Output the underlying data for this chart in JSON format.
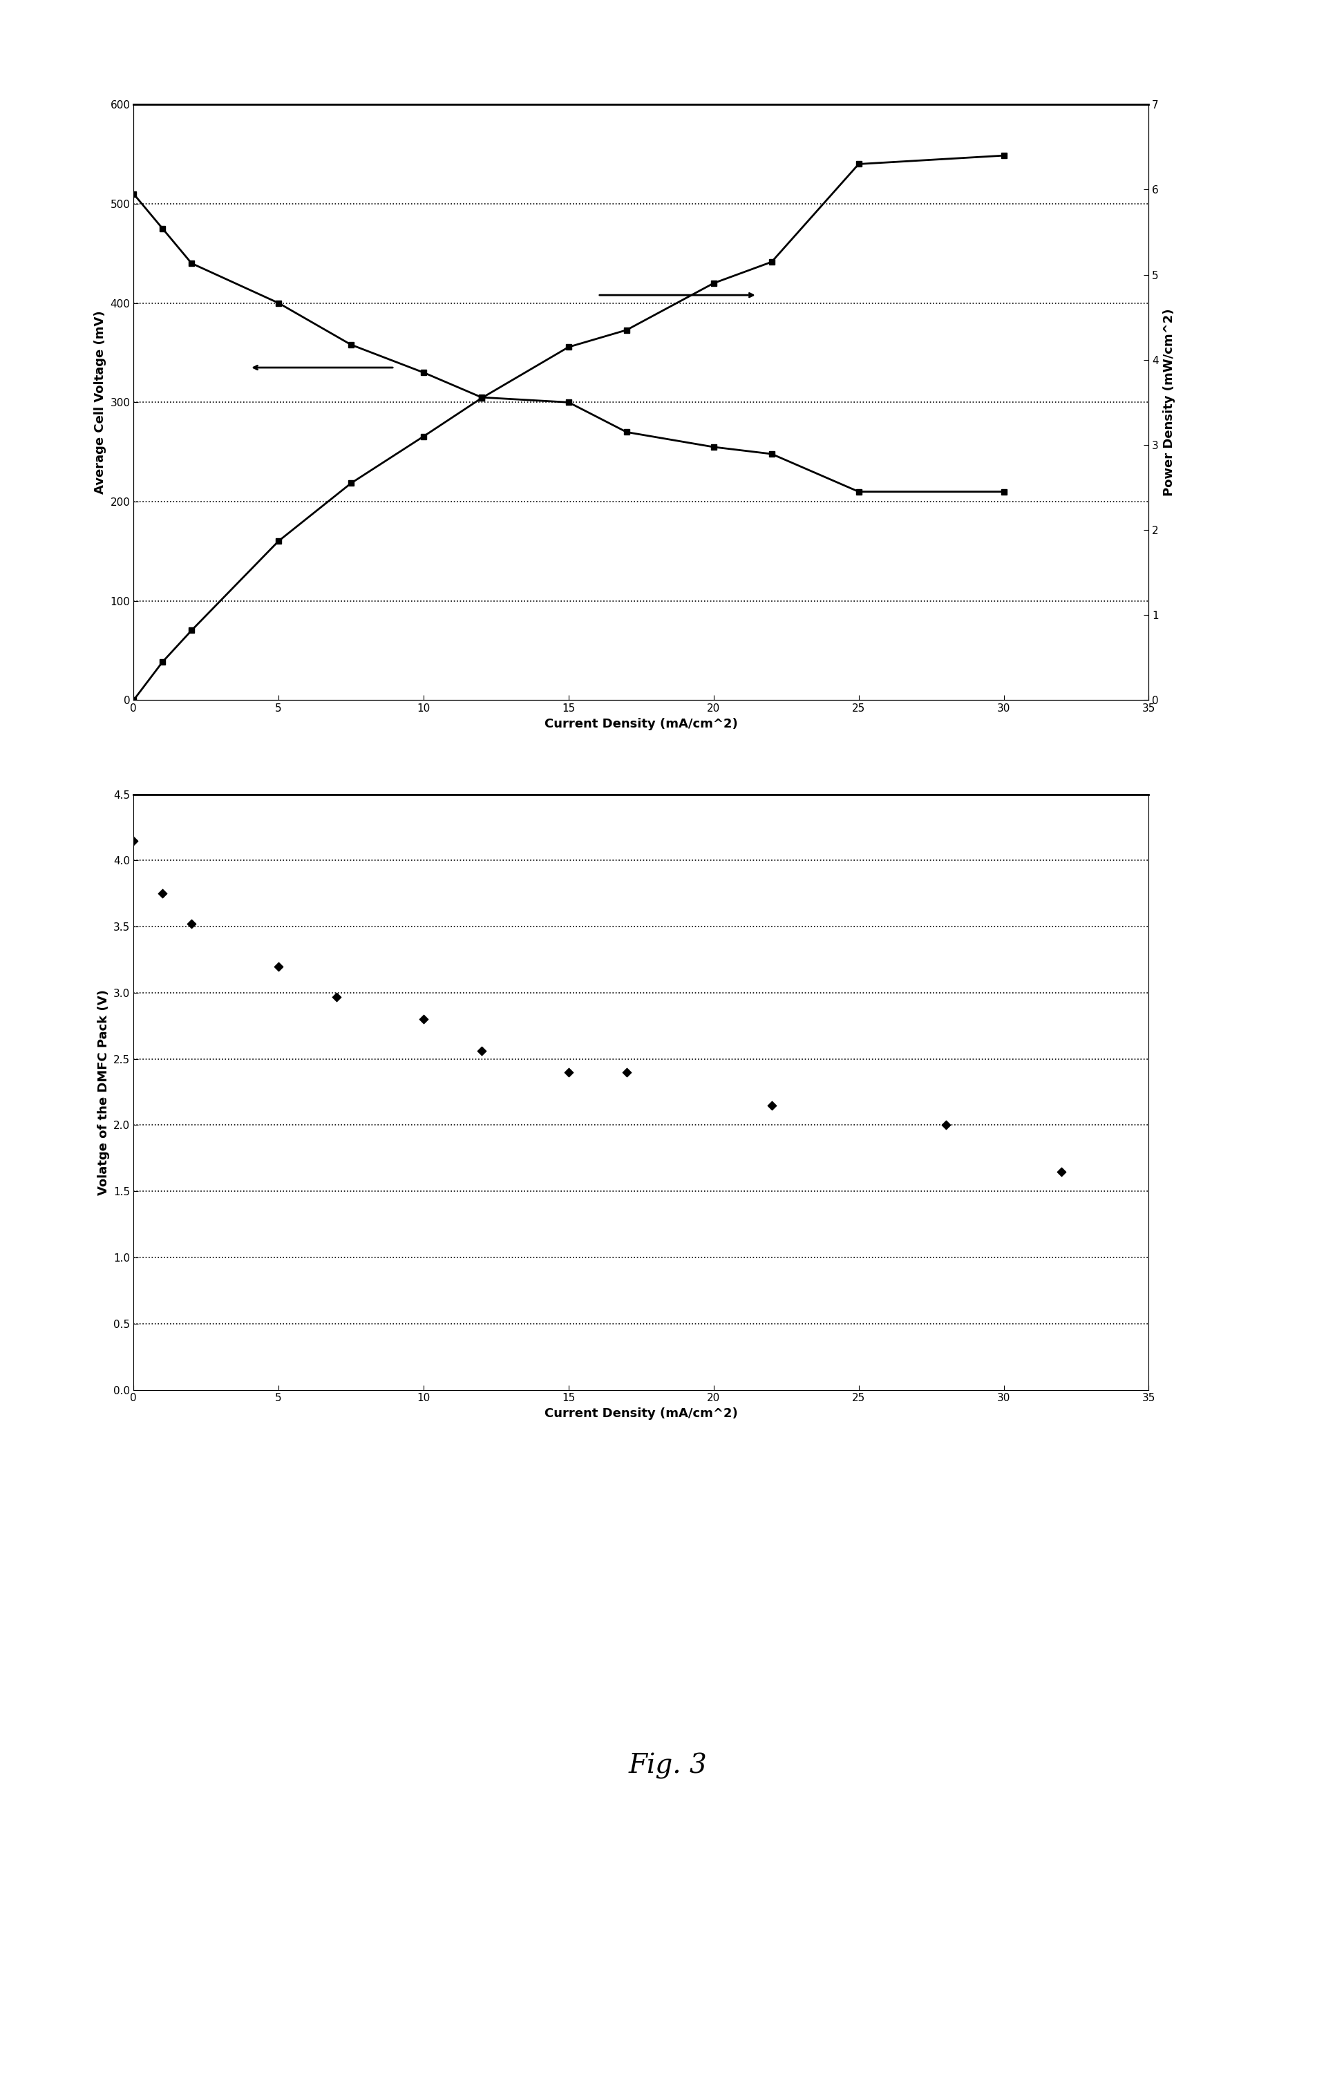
{
  "chart1": {
    "voltage_x": [
      0,
      1,
      2,
      5,
      7.5,
      10,
      12,
      15,
      17,
      20,
      22,
      25,
      30
    ],
    "voltage_y": [
      510,
      475,
      440,
      400,
      358,
      330,
      305,
      300,
      270,
      255,
      248,
      210,
      210
    ],
    "power_x": [
      0,
      1,
      2,
      5,
      7.5,
      10,
      12,
      15,
      17,
      20,
      22,
      25,
      30
    ],
    "power_y": [
      0,
      0.45,
      0.82,
      1.87,
      2.55,
      3.1,
      3.55,
      4.15,
      4.35,
      4.9,
      5.15,
      6.3,
      6.4
    ],
    "xlabel": "Current Density (mA/cm^2)",
    "ylabel_left": "Average Cell Voltage (mV)",
    "ylabel_right": "Power Density (mW/cm^2)",
    "xlim": [
      0,
      35
    ],
    "ylim_left": [
      0,
      600
    ],
    "ylim_right": [
      0,
      7
    ],
    "yticks_left": [
      0,
      100,
      200,
      300,
      400,
      500,
      600
    ],
    "yticks_right": [
      0,
      1,
      2,
      3,
      4,
      5,
      6,
      7
    ],
    "xticks": [
      0,
      5,
      10,
      15,
      20,
      25,
      30,
      35
    ],
    "grid_y_left": [
      100,
      200,
      300,
      400,
      500
    ]
  },
  "chart2": {
    "x": [
      0,
      1,
      2,
      5,
      7,
      10,
      12,
      15,
      17,
      22,
      28,
      32
    ],
    "y": [
      4.15,
      3.75,
      3.52,
      3.2,
      2.97,
      2.8,
      2.56,
      2.4,
      2.4,
      2.15,
      2.0,
      1.65
    ],
    "xlabel": "Current Density (mA/cm^2)",
    "ylabel": "Volatge of the DMFC Pack (V)",
    "xlim": [
      0,
      35
    ],
    "ylim": [
      0,
      4.5
    ],
    "yticks": [
      0,
      0.5,
      1.0,
      1.5,
      2.0,
      2.5,
      3.0,
      3.5,
      4.0,
      4.5
    ],
    "xticks": [
      0,
      5,
      10,
      15,
      20,
      25,
      30,
      35
    ],
    "grid_y": [
      0.5,
      1.0,
      1.5,
      2.0,
      2.5,
      3.0,
      3.5,
      4.0
    ]
  },
  "fig3_label": "Fig. 3",
  "background_color": "#ffffff",
  "line_color": "#000000"
}
